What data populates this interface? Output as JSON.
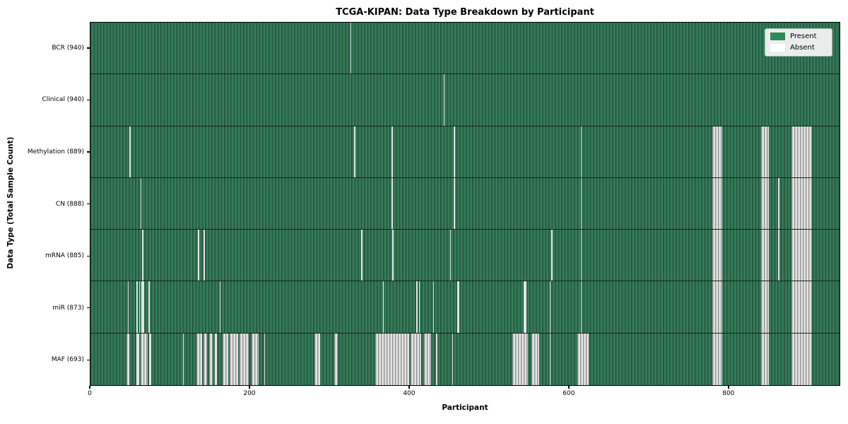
{
  "title": "TCGA-KIPAN: Data Type Breakdown by Participant",
  "xlabel": "Participant",
  "ylabel": "Data Type (Total Sample Count)",
  "legend": {
    "present_label": "Present",
    "absent_label": "Absent"
  },
  "colors": {
    "present": "#2e8b57",
    "absent": "#ffffff",
    "green_dark": "#1e4b37",
    "green_mid": "#2d7150",
    "green_light": "#3c835e",
    "absent_dark": "#8f8f8f",
    "absent_mid": "#c6c6c6",
    "absent_light": "#e4e4e4"
  },
  "chart_data": {
    "type": "heatmap",
    "value_domain": [
      "Present",
      "Absent"
    ],
    "n_participants": 940,
    "x_ticks": [
      0,
      200,
      400,
      600,
      800
    ],
    "grid": false,
    "legend_position": "upper right",
    "rows": [
      {
        "label": "BCR (940)",
        "data_type": "BCR",
        "total_samples": 940,
        "absent_ranges": [
          [
            326,
            327
          ]
        ]
      },
      {
        "label": "Clinical (940)",
        "data_type": "Clinical",
        "total_samples": 940,
        "absent_ranges": [
          [
            443,
            444
          ]
        ]
      },
      {
        "label": "Methylation (889)",
        "data_type": "Methylation",
        "total_samples": 889,
        "absent_ranges": [
          [
            49,
            50
          ],
          [
            331,
            332
          ],
          [
            378,
            379
          ],
          [
            456,
            457
          ],
          [
            615,
            616
          ],
          [
            780,
            793
          ],
          [
            842,
            851
          ],
          [
            880,
            905
          ]
        ]
      },
      {
        "label": "CN (888)",
        "data_type": "CN",
        "total_samples": 888,
        "absent_ranges": [
          [
            63,
            64
          ],
          [
            378,
            379
          ],
          [
            456,
            457
          ],
          [
            615,
            616
          ],
          [
            780,
            793
          ],
          [
            842,
            851
          ],
          [
            863,
            864
          ],
          [
            880,
            905
          ]
        ]
      },
      {
        "label": "mRNA (885)",
        "data_type": "mRNA",
        "total_samples": 885,
        "absent_ranges": [
          [
            65,
            66
          ],
          [
            135,
            136
          ],
          [
            142,
            143
          ],
          [
            340,
            341
          ],
          [
            379,
            380
          ],
          [
            451,
            452
          ],
          [
            578,
            580
          ],
          [
            615,
            616
          ],
          [
            780,
            793
          ],
          [
            842,
            851
          ],
          [
            863,
            864
          ],
          [
            880,
            905
          ]
        ]
      },
      {
        "label": "miR (873)",
        "data_type": "miR",
        "total_samples": 873,
        "absent_ranges": [
          [
            47,
            48
          ],
          [
            58,
            59
          ],
          [
            61,
            62
          ],
          [
            64,
            67
          ],
          [
            73,
            74
          ],
          [
            162,
            163
          ],
          [
            367,
            368
          ],
          [
            409,
            410
          ],
          [
            412,
            413
          ],
          [
            430,
            431
          ],
          [
            460,
            463
          ],
          [
            544,
            547
          ],
          [
            576,
            577
          ],
          [
            615,
            616
          ],
          [
            780,
            793
          ],
          [
            842,
            851
          ],
          [
            880,
            905
          ]
        ]
      },
      {
        "label": "MAF (693)",
        "data_type": "MAF",
        "total_samples": 693,
        "absent_ranges": [
          [
            45,
            49
          ],
          [
            58,
            61
          ],
          [
            63,
            72
          ],
          [
            74,
            76
          ],
          [
            116,
            117
          ],
          [
            133,
            140
          ],
          [
            142,
            146
          ],
          [
            149,
            153
          ],
          [
            156,
            159
          ],
          [
            166,
            173
          ],
          [
            175,
            185
          ],
          [
            187,
            199
          ],
          [
            202,
            211
          ],
          [
            218,
            219
          ],
          [
            281,
            288
          ],
          [
            306,
            310
          ],
          [
            357,
            400
          ],
          [
            402,
            415
          ],
          [
            419,
            427
          ],
          [
            434,
            435
          ],
          [
            454,
            455
          ],
          [
            529,
            549
          ],
          [
            553,
            563
          ],
          [
            576,
            577
          ],
          [
            611,
            625
          ],
          [
            780,
            793
          ],
          [
            842,
            851
          ],
          [
            880,
            905
          ]
        ]
      }
    ]
  }
}
